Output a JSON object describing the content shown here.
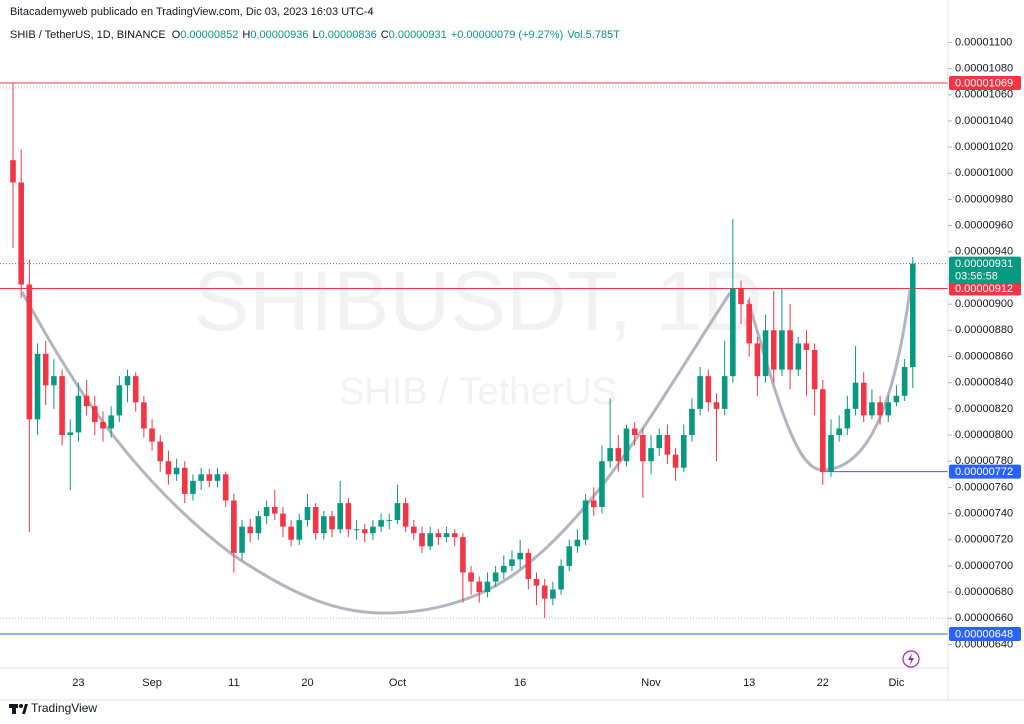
{
  "header": {
    "attribution": "Bitacademyweb publicado en TradingView.com, Dic 03, 2023 16:03 UTC-4",
    "symbol": "SHIB / TetherUS, 1D, BINANCE",
    "ohlc": [
      {
        "key": "O",
        "value": "0.00000852"
      },
      {
        "key": "H",
        "value": "0.00000936"
      },
      {
        "key": "L",
        "value": "0.00000836"
      },
      {
        "key": "C",
        "value": "0.00000931"
      }
    ],
    "change": "+0.00000079 (+9.27%)",
    "volume": "Vol.5.785T"
  },
  "footer": {
    "brand": "TradingView"
  },
  "chart_data": {
    "type": "candlestick",
    "watermark": [
      "SHIBUSDT, 1D",
      "SHIB / TetherUS"
    ],
    "up_color": "#089981",
    "down_color": "#f23645",
    "grid": false,
    "categories": [
      null,
      null,
      null,
      null,
      null,
      null,
      null,
      null,
      "23",
      null,
      null,
      null,
      null,
      null,
      null,
      null,
      null,
      "Sep",
      null,
      null,
      null,
      null,
      null,
      null,
      null,
      null,
      null,
      "11",
      null,
      null,
      null,
      null,
      null,
      null,
      null,
      null,
      "20",
      null,
      null,
      null,
      null,
      null,
      null,
      null,
      null,
      null,
      null,
      "Oct",
      null,
      null,
      null,
      null,
      null,
      null,
      null,
      null,
      null,
      null,
      null,
      null,
      null,
      null,
      "16",
      null,
      null,
      null,
      null,
      null,
      null,
      null,
      null,
      null,
      null,
      null,
      null,
      null,
      null,
      null,
      "Nov",
      null,
      null,
      null,
      null,
      null,
      null,
      null,
      null,
      null,
      null,
      null,
      "13",
      null,
      null,
      null,
      null,
      null,
      null,
      null,
      null,
      "22",
      null,
      null,
      null,
      null,
      null,
      null,
      null,
      null,
      "Dic",
      null,
      null
    ],
    "open": [
      1.01e-05,
      9.93e-06,
      9.15e-06,
      8.12e-06,
      8.62e-06,
      8.38e-06,
      8.45e-06,
      8e-06,
      8.02e-06,
      8.3e-06,
      8.22e-06,
      8.1e-06,
      8.05e-06,
      8.15e-06,
      8.38e-06,
      8.45e-06,
      8.25e-06,
      8.05e-06,
      7.95e-06,
      7.8e-06,
      7.7e-06,
      7.75e-06,
      7.55e-06,
      7.65e-06,
      7.7e-06,
      7.65e-06,
      7.7e-06,
      7.5e-06,
      7.1e-06,
      7.3e-06,
      7.25e-06,
      7.38e-06,
      7.45e-06,
      7.4e-06,
      7.3e-06,
      7.2e-06,
      7.35e-06,
      7.45e-06,
      7.25e-06,
      7.38e-06,
      7.28e-06,
      7.48e-06,
      7.28e-06,
      7.28e-06,
      7.25e-06,
      7.3e-06,
      7.35e-06,
      7.35e-06,
      7.48e-06,
      7.3e-06,
      7.25e-06,
      7.15e-06,
      7.25e-06,
      7.22e-06,
      7.25e-06,
      7.22e-06,
      6.95e-06,
      6.88e-06,
      6.8e-06,
      6.88e-06,
      6.95e-06,
      7e-06,
      7.05e-06,
      7.1e-06,
      6.9e-06,
      6.85e-06,
      6.75e-06,
      6.82e-06,
      7e-06,
      7.15e-06,
      7.2e-06,
      7.5e-06,
      7.45e-06,
      7.8e-06,
      7.9e-06,
      7.8e-06,
      8.05e-06,
      8e-06,
      7.8e-06,
      7.9e-06,
      8e-06,
      7.85e-06,
      7.75e-06,
      8e-06,
      8.2e-06,
      8.45e-06,
      8.25e-06,
      8.2e-06,
      8.45e-06,
      9.12e-06,
      9e-06,
      8.7e-06,
      8.45e-06,
      8.8e-06,
      8.5e-06,
      8.8e-06,
      8.5e-06,
      8.7e-06,
      8.65e-06,
      8.35e-06,
      7.72e-06,
      8e-06,
      8.05e-06,
      8.2e-06,
      8.4e-06,
      8.15e-06,
      8.25e-06,
      8.15e-06,
      8.25e-06,
      8.3e-06,
      8.52e-06
    ],
    "high": [
      1.069e-05,
      1.018e-05,
      9.34e-06,
      8.7e-06,
      8.72e-06,
      8.58e-06,
      8.5e-06,
      8.12e-06,
      8.4e-06,
      8.42e-06,
      8.3e-06,
      8.18e-06,
      8.22e-06,
      8.45e-06,
      8.5e-06,
      8.48e-06,
      8.3e-06,
      8.12e-06,
      8e-06,
      7.88e-06,
      7.82e-06,
      7.8e-06,
      7.7e-06,
      7.75e-06,
      7.74e-06,
      7.75e-06,
      7.72e-06,
      7.55e-06,
      7.35e-06,
      7.36e-06,
      7.42e-06,
      7.5e-06,
      7.58e-06,
      7.45e-06,
      7.35e-06,
      7.4e-06,
      7.55e-06,
      7.48e-06,
      7.42e-06,
      7.42e-06,
      7.65e-06,
      7.52e-06,
      7.35e-06,
      7.32e-06,
      7.35e-06,
      7.4e-06,
      7.4e-06,
      7.62e-06,
      7.52e-06,
      7.35e-06,
      7.3e-06,
      7.3e-06,
      7.28e-06,
      7.3e-06,
      7.28e-06,
      7.25e-06,
      7e-06,
      6.92e-06,
      6.95e-06,
      7e-06,
      7.08e-06,
      7.12e-06,
      7.2e-06,
      7.13e-06,
      6.95e-06,
      6.9e-06,
      6.88e-06,
      7.05e-06,
      7.2e-06,
      7.28e-06,
      7.55e-06,
      7.6e-06,
      7.92e-06,
      8.28e-06,
      8e-06,
      8.08e-06,
      8.1e-06,
      8.05e-06,
      8e-06,
      8.05e-06,
      8.08e-06,
      7.9e-06,
      8.08e-06,
      8.28e-06,
      8.52e-06,
      8.5e-06,
      8.32e-06,
      8.72e-06,
      9.65e-06,
      9.18e-06,
      9.05e-06,
      8.75e-06,
      8.92e-06,
      9.1e-06,
      9.12e-06,
      9e-06,
      8.75e-06,
      8.8e-06,
      8.7e-06,
      8.42e-06,
      8.12e-06,
      8.15e-06,
      8.3e-06,
      8.68e-06,
      8.48e-06,
      8.35e-06,
      8.3e-06,
      8.3e-06,
      8.38e-06,
      8.58e-06,
      9.36e-06
    ],
    "low": [
      9.43e-06,
      9.05e-06,
      7.26e-06,
      8e-06,
      8.23e-06,
      8.2e-06,
      7.92e-06,
      7.58e-06,
      7.95e-06,
      8.15e-06,
      8e-06,
      7.95e-06,
      7.98e-06,
      8.1e-06,
      8.25e-06,
      8.18e-06,
      7.98e-06,
      7.88e-06,
      7.72e-06,
      7.62e-06,
      7.65e-06,
      7.48e-06,
      7.5e-06,
      7.58e-06,
      7.6e-06,
      7.6e-06,
      7.45e-06,
      6.95e-06,
      7.05e-06,
      7.18e-06,
      7.2e-06,
      7.32e-06,
      7.35e-06,
      7.22e-06,
      7.15e-06,
      7.16e-06,
      7.3e-06,
      7.2e-06,
      7.2e-06,
      7.22e-06,
      7.25e-06,
      7.22e-06,
      7.2e-06,
      7.18e-06,
      7.2e-06,
      7.26e-06,
      7.28e-06,
      7.32e-06,
      7.26e-06,
      7.2e-06,
      7.1e-06,
      7.12e-06,
      7.16e-06,
      7.18e-06,
      7.15e-06,
      6.72e-06,
      6.78e-06,
      6.72e-06,
      6.76e-06,
      6.84e-06,
      6.9e-06,
      6.96e-06,
      6.98e-06,
      6.82e-06,
      6.7e-06,
      6.6e-06,
      6.7e-06,
      6.78e-06,
      6.96e-06,
      7.1e-06,
      7.16e-06,
      7.38e-06,
      7.4e-06,
      7.75e-06,
      7.72e-06,
      7.76e-06,
      7.92e-06,
      7.52e-06,
      7.7e-06,
      7.84e-06,
      7.78e-06,
      7.65e-06,
      7.72e-06,
      7.95e-06,
      8.15e-06,
      8.18e-06,
      7.8e-06,
      8.15e-06,
      8.4e-06,
      8.85e-06,
      8.6e-06,
      8.3e-06,
      8.4e-06,
      8.4e-06,
      8.45e-06,
      8.35e-06,
      8.45e-06,
      8.3e-06,
      8.15e-06,
      7.62e-06,
      7.68e-06,
      7.95e-06,
      8e-06,
      8.15e-06,
      8.1e-06,
      8.12e-06,
      8.08e-06,
      8.1e-06,
      8.22e-06,
      8.26e-06,
      8.36e-06
    ],
    "close": [
      9.93e-06,
      9.15e-06,
      8.12e-06,
      8.62e-06,
      8.38e-06,
      8.45e-06,
      8e-06,
      8.02e-06,
      8.3e-06,
      8.22e-06,
      8.1e-06,
      8.05e-06,
      8.15e-06,
      8.38e-06,
      8.45e-06,
      8.25e-06,
      8.05e-06,
      7.95e-06,
      7.8e-06,
      7.7e-06,
      7.75e-06,
      7.55e-06,
      7.65e-06,
      7.7e-06,
      7.65e-06,
      7.7e-06,
      7.5e-06,
      7.1e-06,
      7.3e-06,
      7.25e-06,
      7.38e-06,
      7.45e-06,
      7.4e-06,
      7.3e-06,
      7.2e-06,
      7.35e-06,
      7.45e-06,
      7.25e-06,
      7.38e-06,
      7.28e-06,
      7.48e-06,
      7.28e-06,
      7.28e-06,
      7.25e-06,
      7.3e-06,
      7.35e-06,
      7.35e-06,
      7.48e-06,
      7.3e-06,
      7.25e-06,
      7.15e-06,
      7.25e-06,
      7.22e-06,
      7.25e-06,
      7.22e-06,
      6.95e-06,
      6.88e-06,
      6.8e-06,
      6.88e-06,
      6.95e-06,
      7e-06,
      7.05e-06,
      7.1e-06,
      6.9e-06,
      6.85e-06,
      6.75e-06,
      6.82e-06,
      7e-06,
      7.15e-06,
      7.2e-06,
      7.5e-06,
      7.45e-06,
      7.8e-06,
      7.9e-06,
      7.8e-06,
      8.05e-06,
      8e-06,
      7.8e-06,
      7.9e-06,
      8e-06,
      7.85e-06,
      7.75e-06,
      8e-06,
      8.2e-06,
      8.45e-06,
      8.25e-06,
      8.2e-06,
      8.45e-06,
      9.12e-06,
      9e-06,
      8.7e-06,
      8.45e-06,
      8.8e-06,
      8.5e-06,
      8.8e-06,
      8.5e-06,
      8.7e-06,
      8.65e-06,
      8.35e-06,
      7.72e-06,
      8e-06,
      8.05e-06,
      8.2e-06,
      8.4e-06,
      8.15e-06,
      8.25e-06,
      8.15e-06,
      8.25e-06,
      8.3e-06,
      8.52e-06,
      9.31e-06
    ],
    "ylim": [
      6.22e-06,
      1.111e-05
    ],
    "yticks": [
      {
        "value": 1.1e-05,
        "label": "0.00001100"
      },
      {
        "value": 1.08e-05,
        "label": "0.00001080"
      },
      {
        "value": 1.06e-05,
        "label": "0.00001060"
      },
      {
        "value": 1.04e-05,
        "label": "0.00001040"
      },
      {
        "value": 1.02e-05,
        "label": "0.00001020"
      },
      {
        "value": 1e-05,
        "label": "0.00001000"
      },
      {
        "value": 9.8e-06,
        "label": "0.00000980"
      },
      {
        "value": 9.6e-06,
        "label": "0.00000960"
      },
      {
        "value": 9.4e-06,
        "label": "0.00000940"
      },
      {
        "value": 9.2e-06,
        "label": "0.00000920"
      },
      {
        "value": 9e-06,
        "label": "0.00000900"
      },
      {
        "value": 8.8e-06,
        "label": "0.00000880"
      },
      {
        "value": 8.6e-06,
        "label": "0.00000860"
      },
      {
        "value": 8.4e-06,
        "label": "0.00000840"
      },
      {
        "value": 8.2e-06,
        "label": "0.00000820"
      },
      {
        "value": 8e-06,
        "label": "0.00000800"
      },
      {
        "value": 7.8e-06,
        "label": "0.00000780"
      },
      {
        "value": 7.6e-06,
        "label": "0.00000760"
      },
      {
        "value": 7.4e-06,
        "label": "0.00000740"
      },
      {
        "value": 7.2e-06,
        "label": "0.00000720"
      },
      {
        "value": 7e-06,
        "label": "0.00000700"
      },
      {
        "value": 6.8e-06,
        "label": "0.00000680"
      },
      {
        "value": 6.6e-06,
        "label": "0.00000660"
      },
      {
        "value": 6.4e-06,
        "label": "0.00000640"
      }
    ],
    "price_lines": [
      {
        "value": 1.069e-05,
        "label": "0.00001069",
        "color": "#f23645"
      },
      {
        "value": 9.12e-06,
        "label": "0.00000912",
        "color": "#f23645"
      },
      {
        "value": 7.72e-06,
        "label": "0.00000772",
        "color": "#2962ff"
      },
      {
        "value": 6.48e-06,
        "label": "0.00000648",
        "color": "#2962ff"
      }
    ],
    "last_price": {
      "value": 9.31e-06,
      "label": "0.00000931",
      "countdown": "03:56:58",
      "color": "#089981"
    },
    "dotted_levels": [
      1.066e-05,
      6.6e-06
    ]
  }
}
